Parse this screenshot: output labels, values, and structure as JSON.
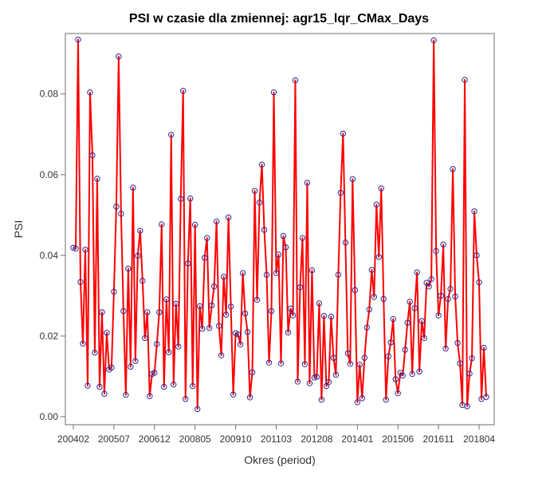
{
  "chart_data": {
    "type": "line",
    "title": "PSI w czasie dla zmiennej: agr15_lqr_CMax_Days",
    "xlabel": "Okres (period)",
    "ylabel": "PSI",
    "ylim": [
      0,
      0.094
    ],
    "y_ticks": [
      "0.00",
      "0.02",
      "0.04",
      "0.06",
      "0.08"
    ],
    "y_tick_values": [
      0,
      0.02,
      0.04,
      0.06,
      0.08
    ],
    "x_ticks": [
      "200402",
      "200507",
      "200612",
      "200805",
      "200910",
      "201103",
      "201208",
      "201401",
      "201506",
      "201611",
      "201804"
    ],
    "x_tick_index": [
      0,
      17,
      34,
      51,
      68,
      85,
      102,
      119,
      136,
      153,
      170
    ],
    "line_color": "#ff0000",
    "marker_color": "#2a2a9a",
    "values": [
      0.0419,
      0.0417,
      0.0935,
      0.0334,
      0.0181,
      0.0414,
      0.0077,
      0.0804,
      0.0648,
      0.0159,
      0.059,
      0.0074,
      0.0259,
      0.0057,
      0.0208,
      0.0117,
      0.0122,
      0.031,
      0.0521,
      0.0893,
      0.0503,
      0.0262,
      0.0054,
      0.0367,
      0.0124,
      0.0568,
      0.0138,
      0.0399,
      0.0461,
      0.0337,
      0.0195,
      0.0259,
      0.0051,
      0.0106,
      0.0109,
      0.018,
      0.0259,
      0.0477,
      0.0074,
      0.0291,
      0.016,
      0.0699,
      0.008,
      0.028,
      0.0174,
      0.054,
      0.0808,
      0.0044,
      0.038,
      0.0541,
      0.0076,
      0.0476,
      0.0019,
      0.0274,
      0.0218,
      0.0394,
      0.0443,
      0.022,
      0.0276,
      0.0323,
      0.0484,
      0.0225,
      0.0152,
      0.0347,
      0.0253,
      0.0494,
      0.0273,
      0.0055,
      0.0207,
      0.0204,
      0.0179,
      0.0356,
      0.0256,
      0.021,
      0.0048,
      0.011,
      0.056,
      0.029,
      0.0531,
      0.0625,
      0.0463,
      0.0352,
      0.0134,
      0.0262,
      0.0804,
      0.0356,
      0.0402,
      0.0132,
      0.0448,
      0.042,
      0.0209,
      0.0268,
      0.0251,
      0.0834,
      0.0087,
      0.0321,
      0.0443,
      0.013,
      0.058,
      0.0083,
      0.0363,
      0.0097,
      0.0099,
      0.0281,
      0.0042,
      0.025,
      0.0076,
      0.0086,
      0.0248,
      0.0146,
      0.0104,
      0.0352,
      0.0555,
      0.0702,
      0.0432,
      0.0157,
      0.0131,
      0.0589,
      0.0314,
      0.0036,
      0.0129,
      0.0046,
      0.0146,
      0.0221,
      0.0266,
      0.0364,
      0.0297,
      0.0526,
      0.0396,
      0.0566,
      0.0292,
      0.0042,
      0.015,
      0.0184,
      0.0242,
      0.0093,
      0.0058,
      0.0109,
      0.0102,
      0.0166,
      0.0233,
      0.0285,
      0.0106,
      0.0269,
      0.0358,
      0.0112,
      0.0237,
      0.0195,
      0.0332,
      0.0323,
      0.0341,
      0.0933,
      0.0411,
      0.0251,
      0.03,
      0.0427,
      0.0169,
      0.0292,
      0.0317,
      0.0614,
      0.0298,
      0.0183,
      0.0132,
      0.0029,
      0.0835,
      0.0026,
      0.0107,
      0.0145,
      0.0509,
      0.04,
      0.0333,
      0.0044,
      0.0171,
      0.0049
    ]
  }
}
